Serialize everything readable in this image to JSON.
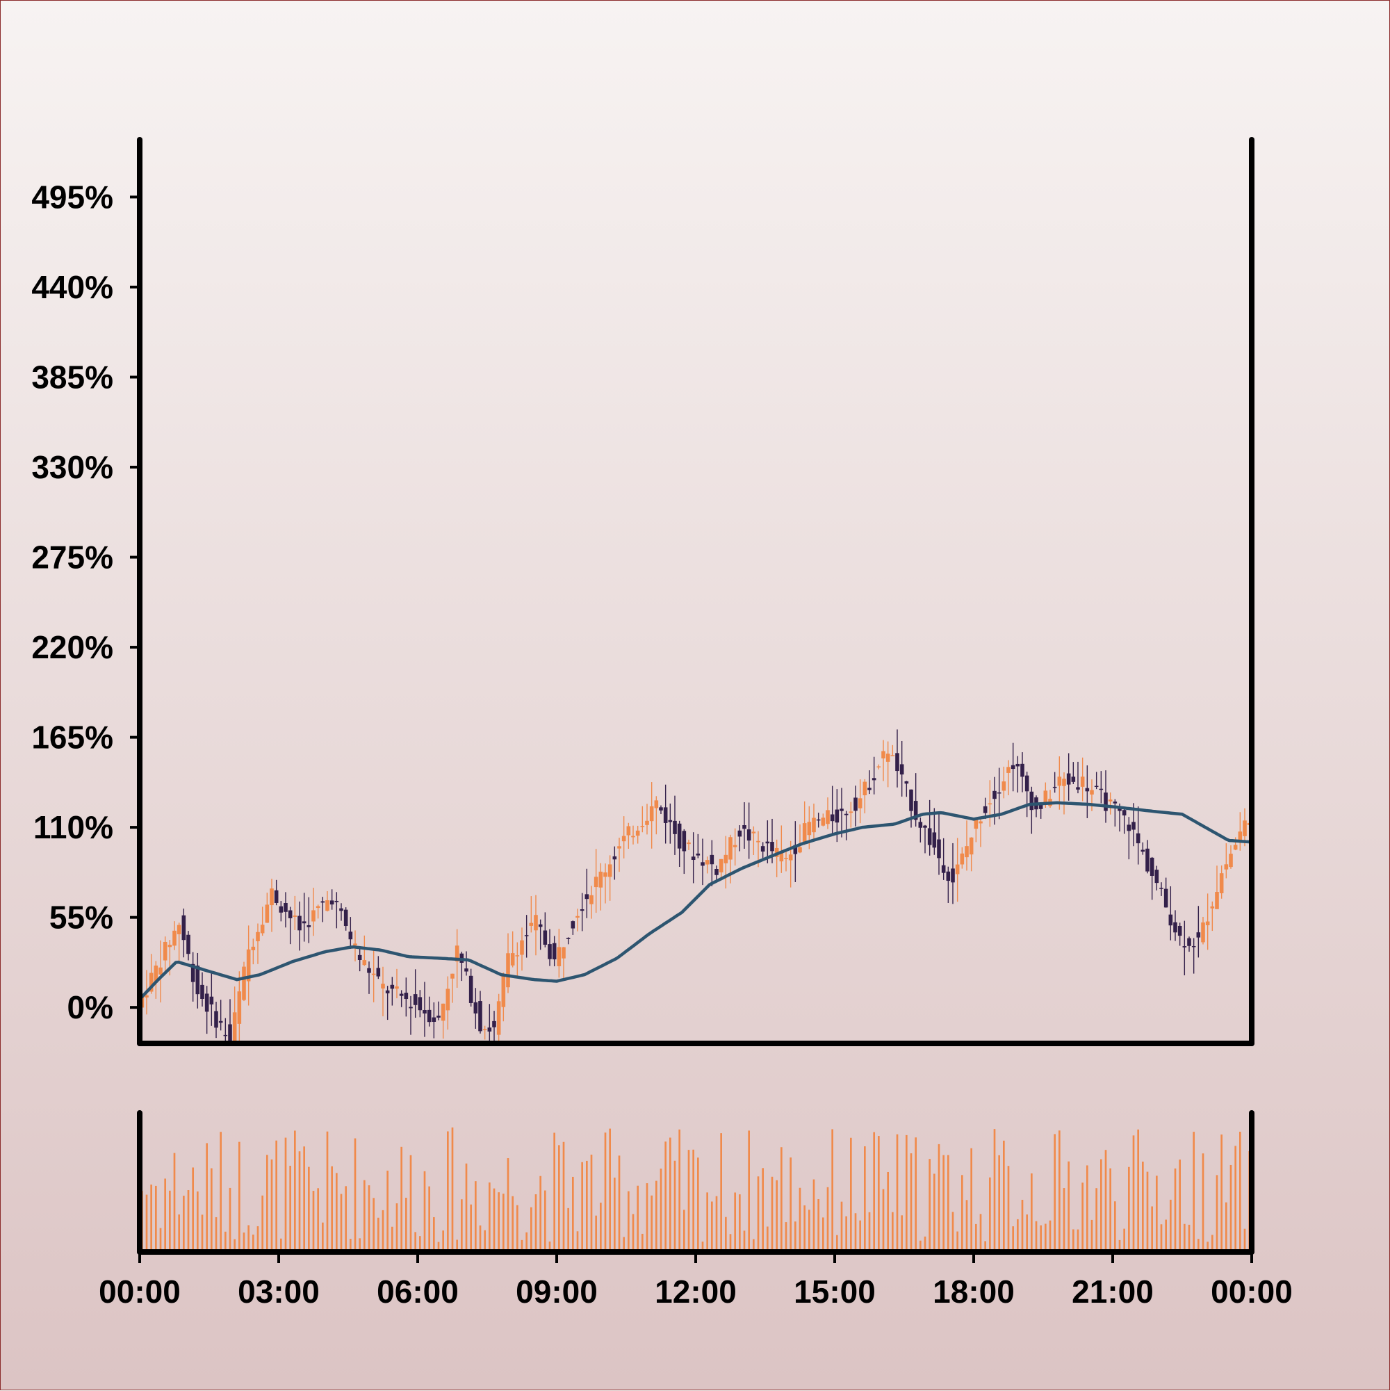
{
  "chart_data": {
    "type": "candlestick",
    "title": "",
    "xlabel": "",
    "ylabel": "",
    "y_ticks": [
      "0%",
      "55%",
      "110%",
      "165%",
      "220%",
      "275%",
      "330%",
      "385%",
      "440%",
      "495%"
    ],
    "y_tick_values": [
      0,
      55,
      110,
      165,
      220,
      275,
      330,
      385,
      440,
      495
    ],
    "ylim": [
      -22,
      530
    ],
    "x_ticks": [
      "00:00",
      "03:00",
      "06:00",
      "09:00",
      "12:00",
      "15:00",
      "18:00",
      "21:00",
      "00:00"
    ],
    "x_tick_hours": [
      0,
      3,
      6,
      9,
      12,
      15,
      18,
      21,
      24
    ],
    "xlim_hours": [
      0,
      24
    ],
    "grid": false,
    "colors": {
      "up": "#f08a4b",
      "down": "#33204a",
      "moving_average": "#2d5570",
      "volume": "#f08a4b",
      "axis": "#000000"
    },
    "price_path_keypoints": [
      [
        0.0,
        0
      ],
      [
        0.3,
        18
      ],
      [
        0.9,
        52
      ],
      [
        1.3,
        10
      ],
      [
        2.0,
        -20
      ],
      [
        2.4,
        35
      ],
      [
        2.9,
        70
      ],
      [
        3.5,
        48
      ],
      [
        4.2,
        68
      ],
      [
        4.8,
        30
      ],
      [
        5.3,
        12
      ],
      [
        6.0,
        2
      ],
      [
        6.5,
        -8
      ],
      [
        6.9,
        35
      ],
      [
        7.4,
        -10
      ],
      [
        7.7,
        -14
      ],
      [
        8.0,
        30
      ],
      [
        8.6,
        52
      ],
      [
        9.0,
        28
      ],
      [
        9.5,
        60
      ],
      [
        10.5,
        102
      ],
      [
        11.2,
        125
      ],
      [
        11.8,
        98
      ],
      [
        12.5,
        85
      ],
      [
        13.0,
        108
      ],
      [
        14.0,
        90
      ],
      [
        14.5,
        112
      ],
      [
        15.2,
        118
      ],
      [
        15.6,
        128
      ],
      [
        16.2,
        158
      ],
      [
        16.8,
        118
      ],
      [
        17.3,
        92
      ],
      [
        17.6,
        78
      ],
      [
        18.2,
        118
      ],
      [
        18.9,
        150
      ],
      [
        19.4,
        120
      ],
      [
        19.9,
        138
      ],
      [
        20.4,
        138
      ],
      [
        20.8,
        128
      ],
      [
        21.4,
        112
      ],
      [
        22.0,
        75
      ],
      [
        22.5,
        42
      ],
      [
        22.9,
        40
      ],
      [
        23.4,
        82
      ],
      [
        24.0,
        118
      ]
    ],
    "moving_average_keypoints": [
      [
        0.0,
        5
      ],
      [
        0.4,
        17
      ],
      [
        0.8,
        28
      ],
      [
        1.5,
        22
      ],
      [
        2.1,
        17
      ],
      [
        2.6,
        20
      ],
      [
        3.3,
        28
      ],
      [
        4.0,
        34
      ],
      [
        4.6,
        37
      ],
      [
        5.2,
        35
      ],
      [
        5.8,
        31
      ],
      [
        6.5,
        30
      ],
      [
        7.1,
        29
      ],
      [
        7.8,
        20
      ],
      [
        8.5,
        17
      ],
      [
        9.0,
        16
      ],
      [
        9.6,
        20
      ],
      [
        10.3,
        30
      ],
      [
        11.0,
        45
      ],
      [
        11.7,
        58
      ],
      [
        12.3,
        75
      ],
      [
        13.0,
        85
      ],
      [
        13.6,
        92
      ],
      [
        14.3,
        100
      ],
      [
        15.0,
        106
      ],
      [
        15.6,
        110
      ],
      [
        16.3,
        112
      ],
      [
        16.9,
        118
      ],
      [
        17.3,
        119
      ],
      [
        18.0,
        115
      ],
      [
        18.6,
        118
      ],
      [
        19.2,
        124
      ],
      [
        19.8,
        125
      ],
      [
        20.5,
        124
      ],
      [
        21.2,
        122
      ],
      [
        21.8,
        120
      ],
      [
        22.5,
        118
      ],
      [
        23.0,
        110
      ],
      [
        23.5,
        102
      ],
      [
        24.0,
        101
      ]
    ],
    "candle_count": 240,
    "candle_spread": 11,
    "volume_range": [
      8,
      100
    ],
    "volume_bar_count": 240
  }
}
